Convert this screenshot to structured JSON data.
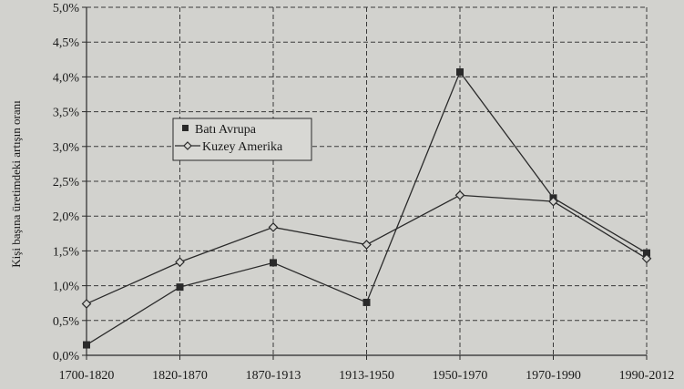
{
  "chart_data": {
    "type": "line",
    "title": "",
    "xlabel": "",
    "ylabel": "Kişi başına üretimdeki artışın oranı",
    "categories": [
      "1700-1820",
      "1820-1870",
      "1870-1913",
      "1913-1950",
      "1950-1970",
      "1970-1990",
      "1990-2012"
    ],
    "y_ticks": [
      "0,0%",
      "0,5%",
      "1,0%",
      "1,5%",
      "2,0%",
      "2,5%",
      "3,0%",
      "3,5%",
      "4,0%",
      "4,5%",
      "5,0%"
    ],
    "ylim": [
      0,
      5.0
    ],
    "grid": true,
    "legend_position": "upper-left-center",
    "series": [
      {
        "name": "Batı Avrupa",
        "marker": "square",
        "values": [
          0.15,
          0.98,
          1.33,
          0.76,
          4.07,
          2.26,
          1.47
        ]
      },
      {
        "name": "Kuzey Amerika",
        "marker": "diamond",
        "values": [
          0.74,
          1.34,
          1.84,
          1.59,
          2.3,
          2.21,
          1.39
        ]
      }
    ],
    "colors": {
      "line": "#2a2a2a",
      "grid": "#3a3a3a",
      "background": "#d2d2ce"
    }
  }
}
